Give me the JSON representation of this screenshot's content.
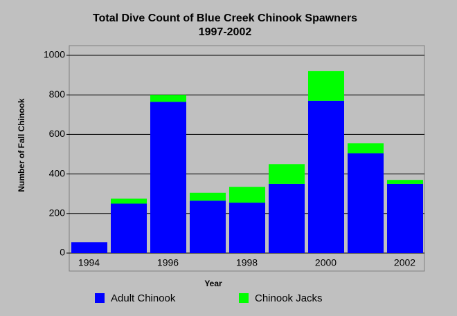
{
  "chart_data": {
    "type": "stacked_bar",
    "title": "Total Dive Count of Blue Creek Chinook Spawners",
    "subtitle": "1997-2002",
    "x_label": "Year",
    "y_label": "Number of Fall Chinook",
    "categories": [
      "1994",
      null,
      "1996",
      null,
      "1998",
      null,
      "2000",
      null,
      "2002"
    ],
    "series": [
      {
        "name": "Adult Chinook",
        "color": "#0000ff",
        "values": [
          55,
          250,
          765,
          265,
          255,
          350,
          770,
          505,
          350
        ]
      },
      {
        "name": "Chinook Jacks",
        "color": "#00ff00",
        "values": [
          0,
          25,
          35,
          40,
          80,
          100,
          150,
          50,
          20
        ]
      }
    ],
    "ylim": [
      0,
      1000
    ],
    "yticks": [
      0,
      200,
      400,
      600,
      800,
      1000
    ],
    "grid": true,
    "legend": "bottom"
  }
}
